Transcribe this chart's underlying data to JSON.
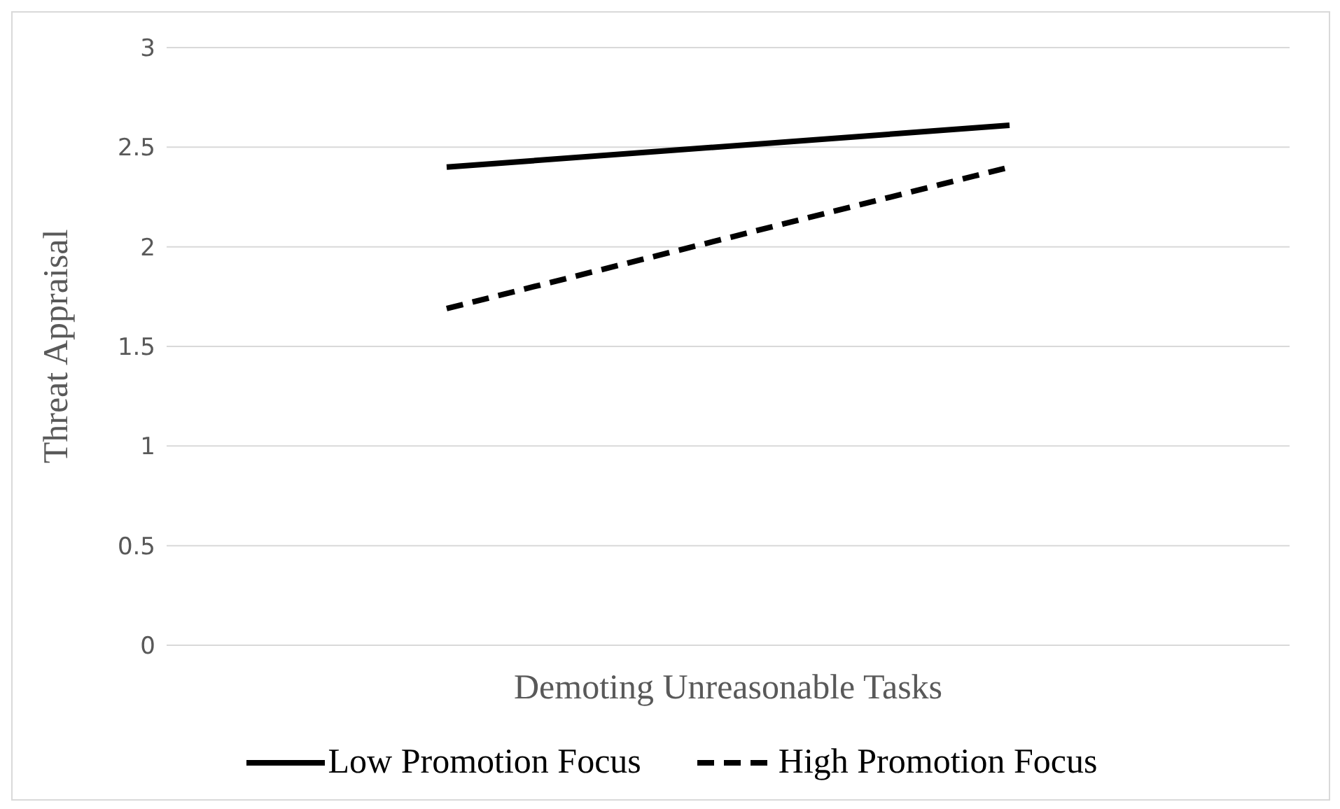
{
  "chart_data": {
    "type": "line",
    "xlabel": "Demoting Unreasonable Tasks",
    "ylabel": "Threat Appraisal",
    "categories": [
      null,
      null
    ],
    "series": [
      {
        "name": "Low Promotion Focus",
        "color": "#000000",
        "values": [
          2.4,
          2.61
        ],
        "line_style": "solid"
      },
      {
        "name": "High Promotion Focus",
        "color": "#000000",
        "values": [
          1.69,
          2.4
        ],
        "line_style": "dashed"
      }
    ],
    "ylim": [
      0,
      3
    ],
    "yticks": [
      0,
      0.5,
      1,
      1.5,
      2,
      2.5,
      3
    ],
    "grid": "y",
    "legend": "bottom",
    "marker": "none"
  }
}
